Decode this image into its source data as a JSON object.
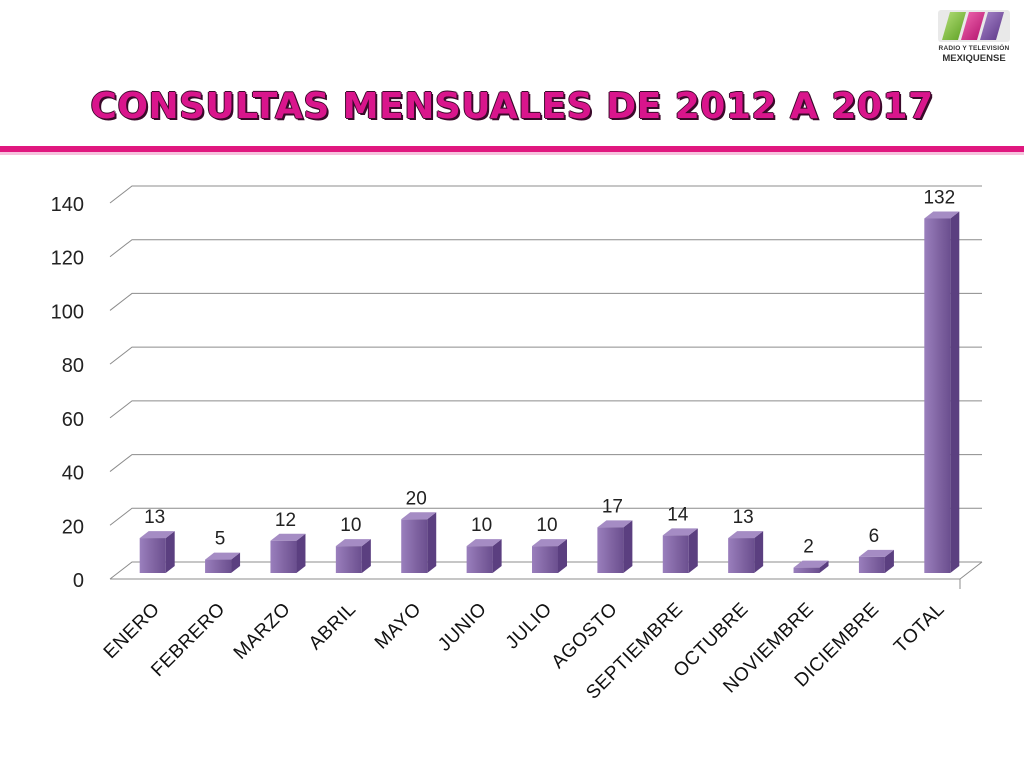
{
  "logo": {
    "name_line1": "RADIO Y TELEVISIÓN",
    "name_line2": "MEXIQUENSE",
    "stripe_colors": [
      "#8cc63f",
      "#e0177f",
      "#7b4fa6"
    ]
  },
  "header": {
    "title": "CONSULTAS MENSUALES DE 2012 A 2017",
    "title_color": "#d9158c",
    "rule_color": "#e0177f"
  },
  "chart_data": {
    "type": "bar",
    "style": "3d-clustered-column",
    "title": "",
    "xlabel": "",
    "ylabel": "",
    "categories": [
      "ENERO",
      "FEBRERO",
      "MARZO",
      "ABRIL",
      "MAYO",
      "JUNIO",
      "JULIO",
      "AGOSTO",
      "SEPTIEMBRE",
      "OCTUBRE",
      "NOVIEMBRE",
      "DICIEMBRE",
      "TOTAL"
    ],
    "values": [
      13,
      5,
      12,
      10,
      20,
      10,
      10,
      17,
      14,
      13,
      2,
      6,
      132
    ],
    "ylim": [
      0,
      140
    ],
    "yticks": [
      0,
      20,
      40,
      60,
      80,
      100,
      120,
      140
    ],
    "grid": true,
    "legend": "none",
    "bar_color": "#8064a2"
  }
}
